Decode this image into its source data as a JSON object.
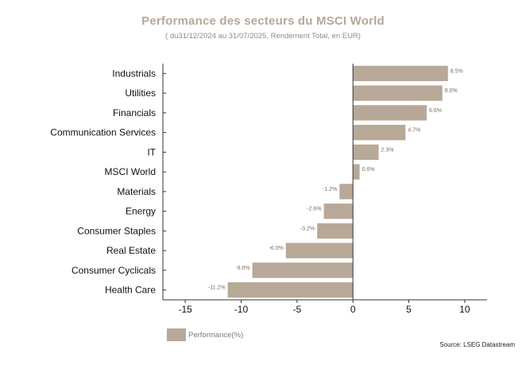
{
  "chart_data": {
    "type": "bar",
    "orientation": "horizontal",
    "title": "Performance des secteurs du MSCI World",
    "subtitle": "( du31/12/2024 au 31/07/2025, Rendement Total, en EUR)",
    "categories": [
      "Industrials",
      "Utilities",
      "Financials",
      "Communication Services",
      "IT",
      "MSCI World",
      "Materials",
      "Energy",
      "Consumer Staples",
      "Real Estate",
      "Consumer Cyclicals",
      "Health Care"
    ],
    "series": [
      {
        "name": "Performance(%)",
        "values": [
          8.5,
          8.0,
          6.6,
          4.7,
          2.3,
          0.6,
          -1.2,
          -2.6,
          -3.2,
          -6.0,
          -9.0,
          -11.2
        ],
        "data_labels": [
          "8.5%",
          "8.0%",
          "6.6%",
          "4.7%",
          "2.3%",
          "0.6%",
          "-1.2%",
          "-2.6%",
          "-3.2%",
          "-6.0%",
          "-9.0%",
          "-11.2%"
        ]
      }
    ],
    "xlim": [
      -17,
      12
    ],
    "xticks": [
      -15,
      -10,
      -5,
      0,
      5,
      10
    ],
    "xtick_labels": [
      "-15",
      "-10",
      "-5",
      "0",
      "5",
      "10"
    ],
    "grid": false,
    "legend_position": "bottom-left",
    "bar_color": "#b8a898",
    "source": "Source: LSEG Datastream"
  }
}
